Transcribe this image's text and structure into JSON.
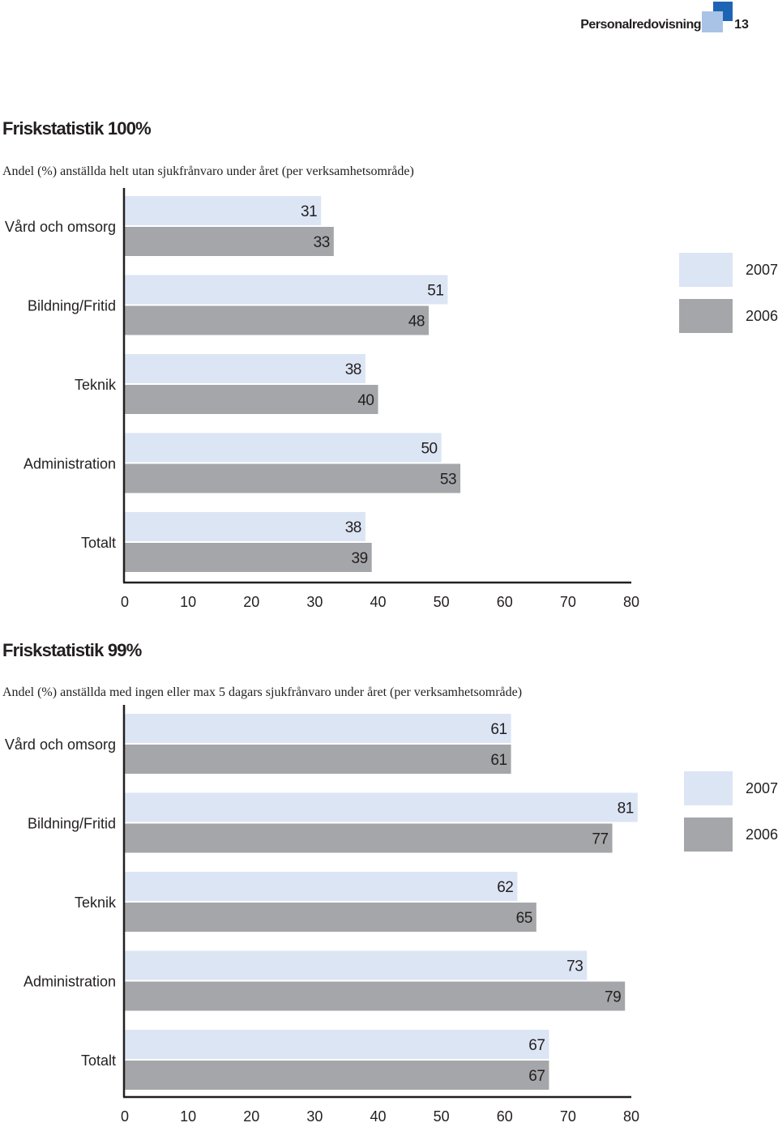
{
  "header": {
    "section": "Personalredovisning",
    "page_number": "13",
    "logo_colors": {
      "dark": "#1e64b4",
      "light": "#a9c3e6"
    }
  },
  "colors": {
    "series_2007": "#dce5f4",
    "series_2006": "#a5a6a9",
    "axis": "#231f20"
  },
  "charts": [
    {
      "title": "Friskstatistik 100%",
      "subtitle": "Andel (%) anställda helt utan sjukfrånvaro under året (per verksamhetsområde)"
    },
    {
      "title": "Friskstatistik 99%",
      "subtitle": "Andel (%) anställda med ingen eller max 5 dagars sjukfrånvaro under året (per verksamhetsområde)"
    }
  ],
  "chart_data": [
    {
      "type": "bar",
      "orientation": "horizontal",
      "title": "Friskstatistik 100%",
      "subtitle": "Andel (%) anställda helt utan sjukfrånvaro under året (per verksamhetsområde)",
      "categories": [
        "Vård och omsorg",
        "Bildning/Fritid",
        "Teknik",
        "Administration",
        "Totalt"
      ],
      "series": [
        {
          "name": "2007",
          "values": [
            31,
            51,
            38,
            50,
            38
          ]
        },
        {
          "name": "2006",
          "values": [
            33,
            48,
            40,
            53,
            39
          ]
        }
      ],
      "xlim": [
        0,
        80
      ],
      "xticks": [
        0,
        10,
        20,
        30,
        40,
        50,
        60,
        70,
        80
      ],
      "grid": false,
      "legend_position": "right"
    },
    {
      "type": "bar",
      "orientation": "horizontal",
      "title": "Friskstatistik 99%",
      "subtitle": "Andel (%) anställda med ingen eller max 5 dagars sjukfrånvaro under året (per verksamhetsområde)",
      "categories": [
        "Vård och omsorg",
        "Bildning/Fritid",
        "Teknik",
        "Administration",
        "Totalt"
      ],
      "series": [
        {
          "name": "2007",
          "values": [
            61,
            81,
            62,
            73,
            67
          ]
        },
        {
          "name": "2006",
          "values": [
            61,
            77,
            65,
            79,
            67
          ]
        }
      ],
      "xlim": [
        0,
        80
      ],
      "xticks": [
        0,
        10,
        20,
        30,
        40,
        50,
        60,
        70,
        80
      ],
      "grid": false,
      "legend_position": "right"
    }
  ]
}
